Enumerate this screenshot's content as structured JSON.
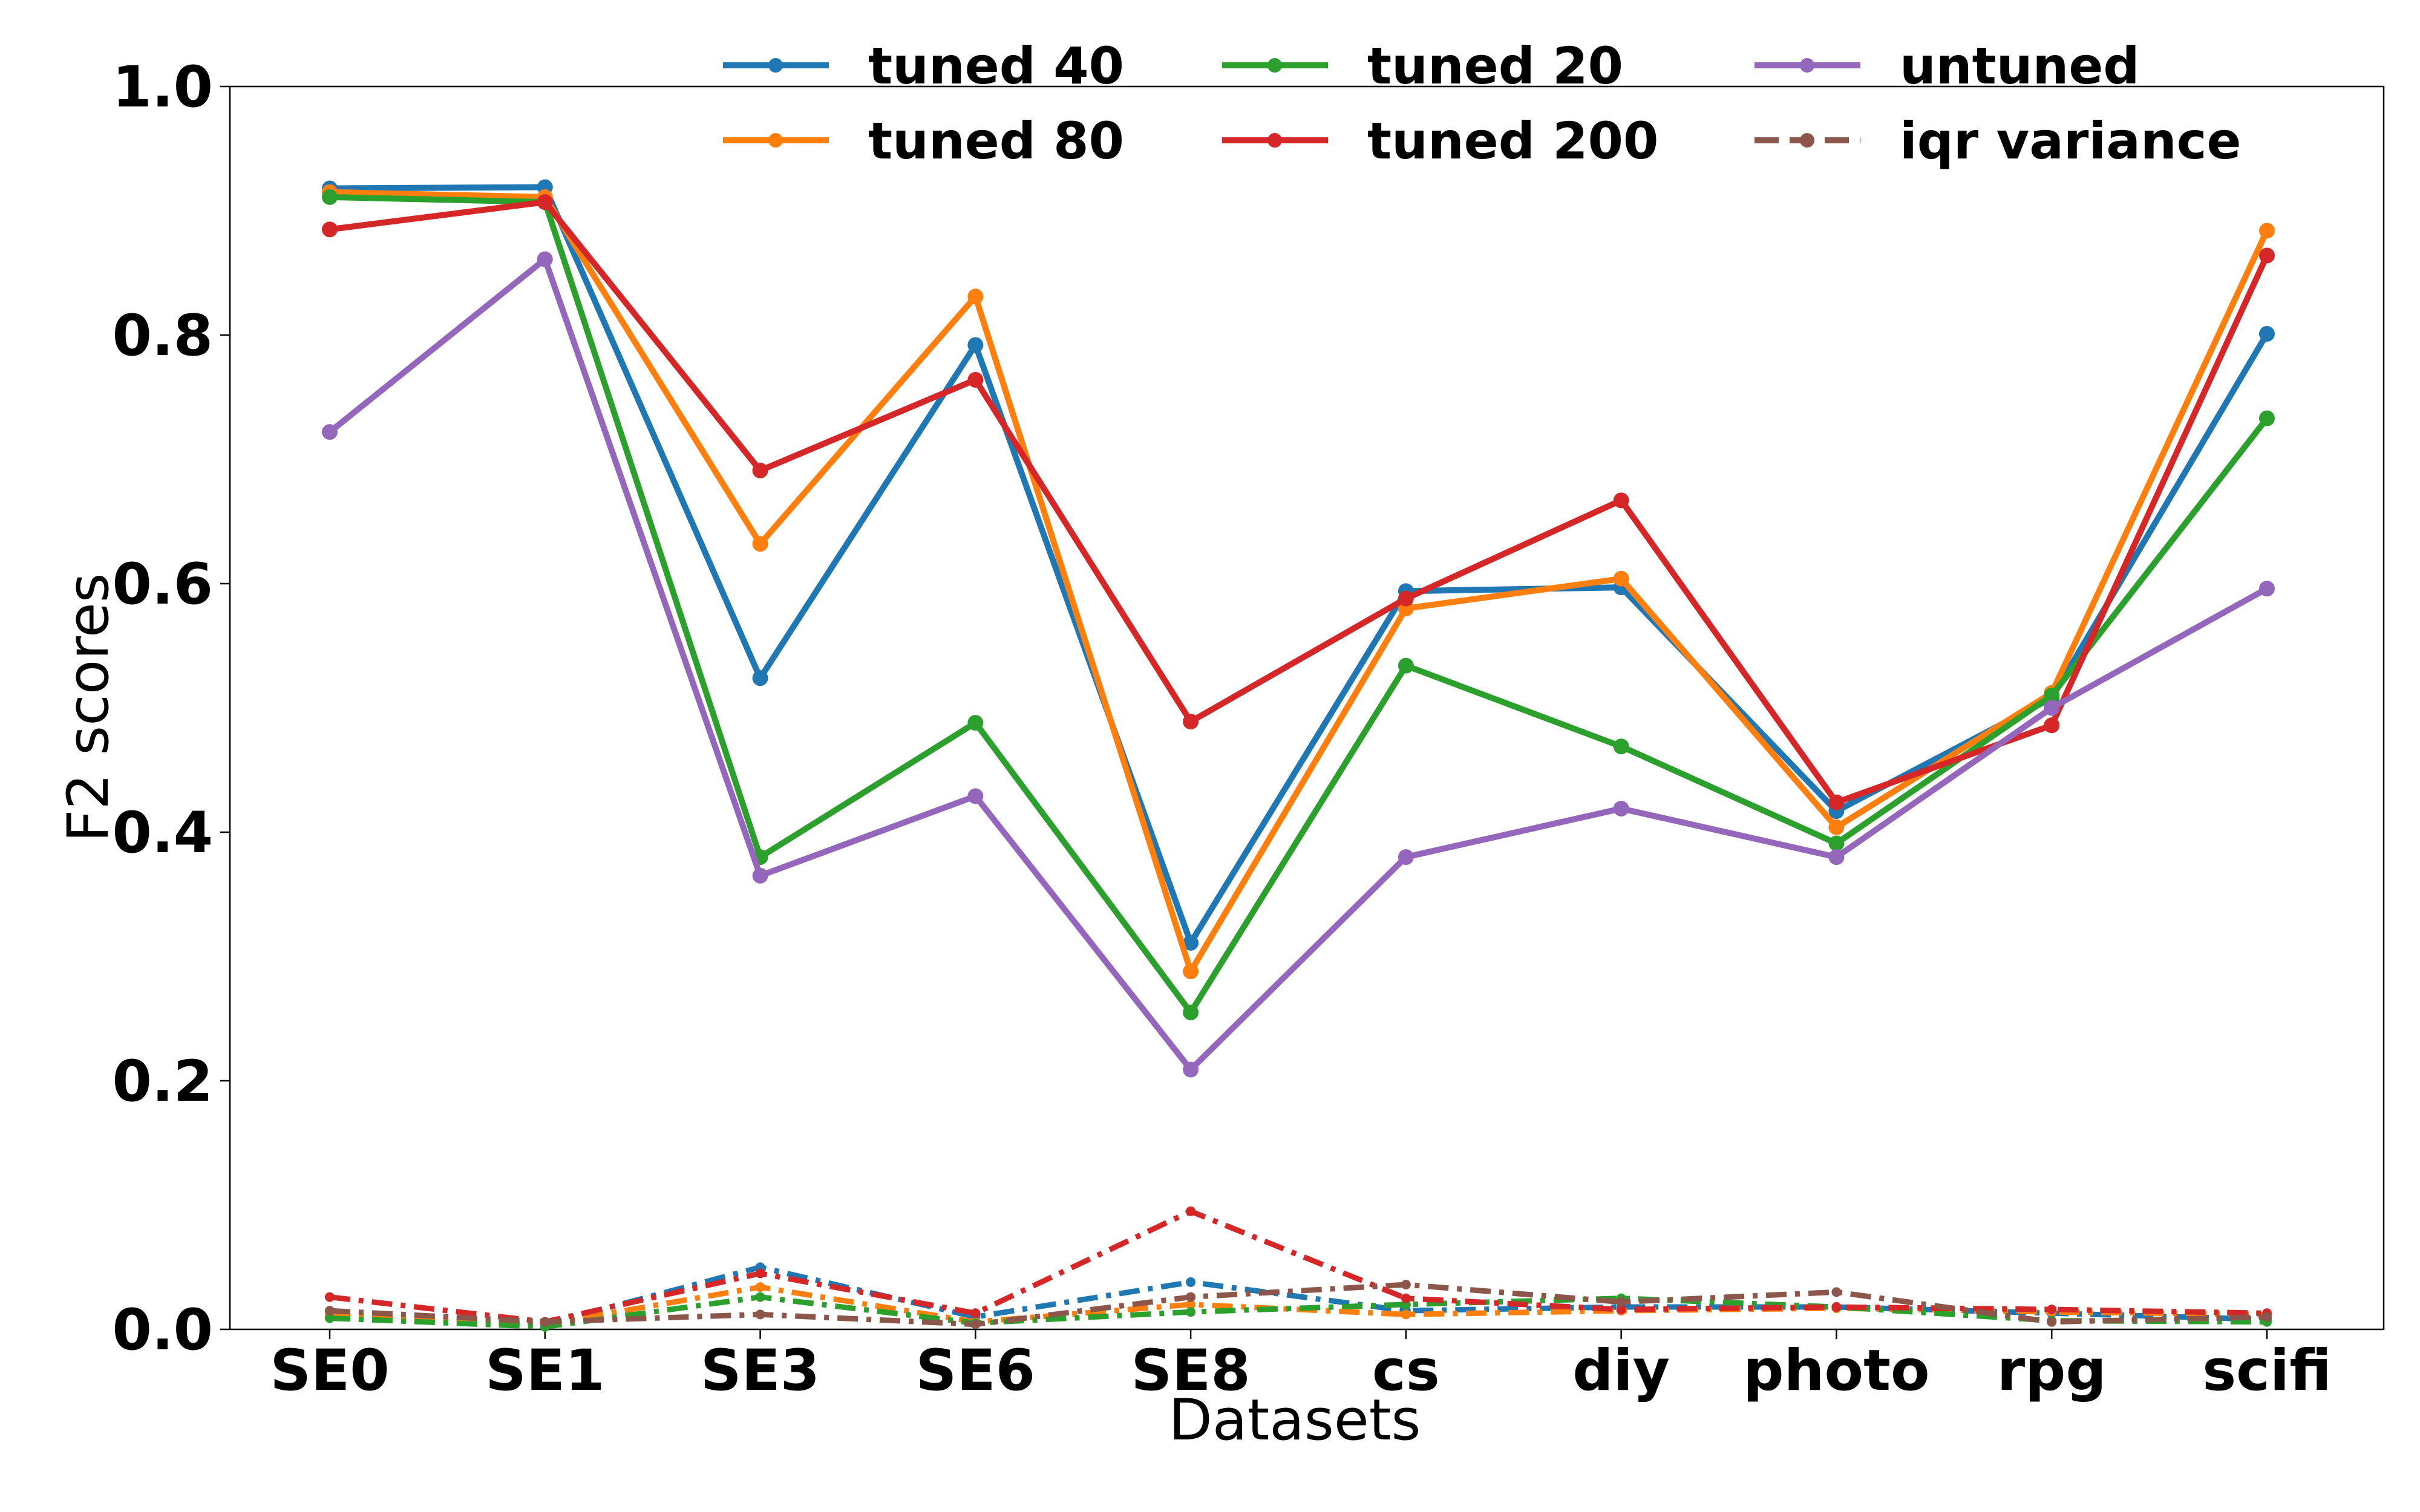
{
  "chart_data": {
    "type": "line",
    "xlabel": "Datasets",
    "ylabel": "F2 scores",
    "ylim": [
      0,
      1.0
    ],
    "yticks": [
      0.0,
      0.2,
      0.4,
      0.6,
      0.8,
      1.0
    ],
    "ytick_labels": [
      "0.0",
      "0.2",
      "0.4",
      "0.6",
      "0.8",
      "1.0"
    ],
    "categories": [
      "SE0",
      "SE1",
      "SE3",
      "SE6",
      "SE8",
      "cs",
      "diy",
      "photo",
      "rpg",
      "scifi"
    ],
    "grid": false,
    "legend_position": "top",
    "series": [
      {
        "name": "tuned 40",
        "color": "#1f77b4",
        "values": [
          0.918,
          0.919,
          0.524,
          0.792,
          0.311,
          0.594,
          0.597,
          0.417,
          0.508,
          0.801
        ]
      },
      {
        "name": "tuned 80",
        "color": "#ff7f0e",
        "values": [
          0.915,
          0.911,
          0.632,
          0.831,
          0.288,
          0.58,
          0.604,
          0.404,
          0.512,
          0.884
        ]
      },
      {
        "name": "tuned 20",
        "color": "#2ca02c",
        "values": [
          0.911,
          0.907,
          0.38,
          0.488,
          0.255,
          0.534,
          0.469,
          0.391,
          0.51,
          0.733
        ]
      },
      {
        "name": "tuned 200",
        "color": "#d62728",
        "values": [
          0.885,
          0.907,
          0.691,
          0.764,
          0.489,
          0.588,
          0.667,
          0.424,
          0.486,
          0.864
        ]
      },
      {
        "name": "untuned",
        "color": "#9467bd",
        "values": [
          0.722,
          0.861,
          0.365,
          0.429,
          0.209,
          0.38,
          0.419,
          0.38,
          0.5,
          0.596
        ]
      }
    ],
    "variance_series": {
      "legend_name": "iqr variance",
      "legend_color": "#8c564b",
      "lines": [
        {
          "color": "#1f77b4",
          "values": [
            0.01,
            0.004,
            0.05,
            0.01,
            0.038,
            0.015,
            0.018,
            0.018,
            0.013,
            0.008
          ]
        },
        {
          "color": "#ff7f0e",
          "values": [
            0.012,
            0.004,
            0.034,
            0.006,
            0.02,
            0.012,
            0.015,
            0.017,
            0.014,
            0.012
          ]
        },
        {
          "color": "#2ca02c",
          "values": [
            0.009,
            0.002,
            0.026,
            0.005,
            0.014,
            0.02,
            0.025,
            0.018,
            0.007,
            0.006
          ]
        },
        {
          "color": "#d62728",
          "values": [
            0.026,
            0.006,
            0.045,
            0.013,
            0.095,
            0.025,
            0.016,
            0.018,
            0.016,
            0.013
          ]
        },
        {
          "color": "#8c564b",
          "values": [
            0.015,
            0.006,
            0.012,
            0.004,
            0.026,
            0.036,
            0.022,
            0.03,
            0.006,
            0.01
          ]
        }
      ]
    }
  }
}
